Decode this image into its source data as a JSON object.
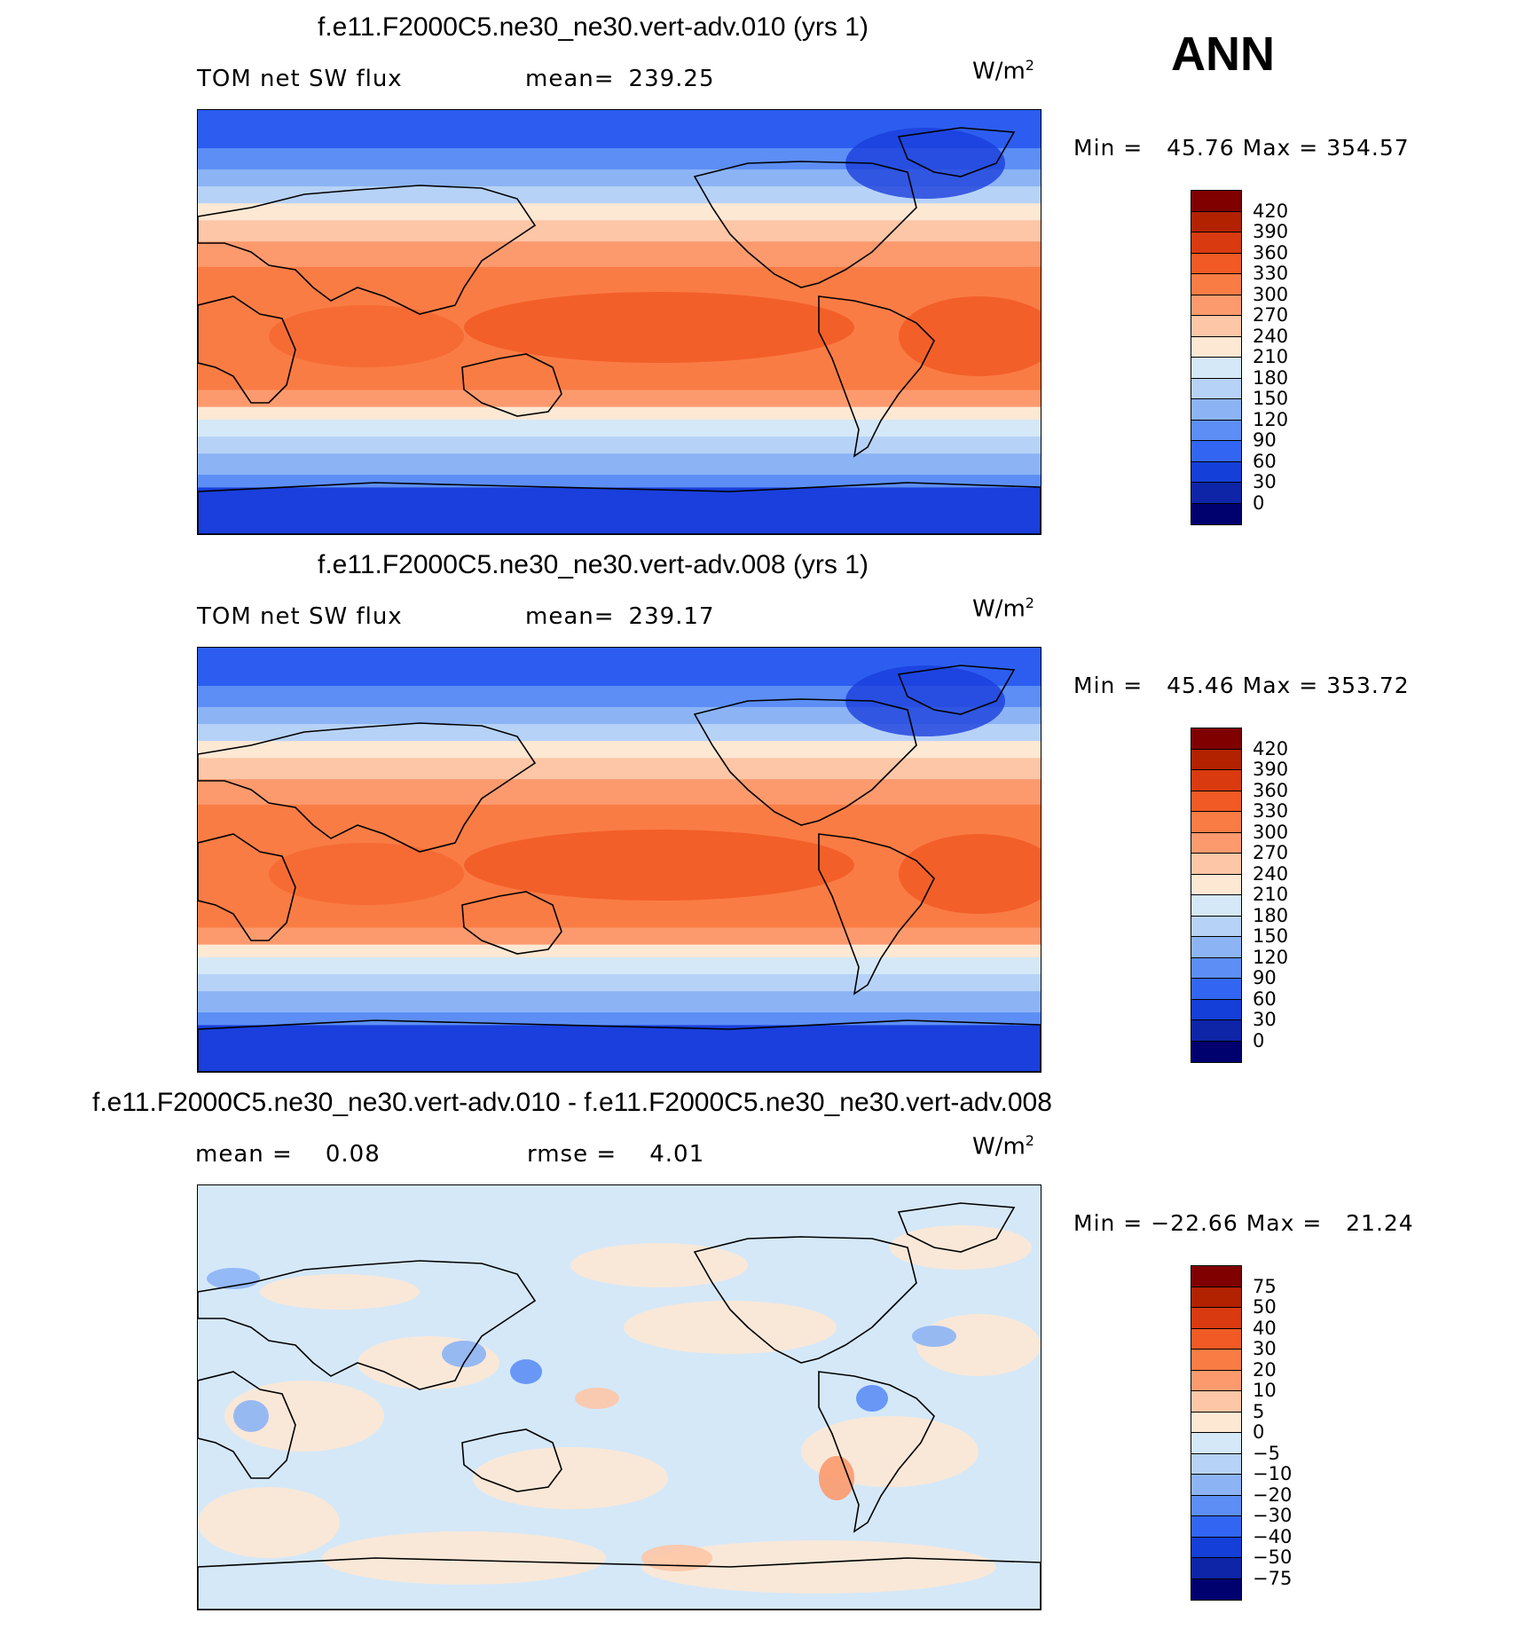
{
  "season": "ANN",
  "units": {
    "base": "W/m",
    "exp": "2"
  },
  "panels": [
    {
      "title": "f.e11.F2000C5.ne30_ne30.vert-adv.010 (yrs 1)",
      "stat1_label": "TOM net SW flux",
      "stat2_label": "mean=",
      "stat2_value": "239.25",
      "min_label": "Min =",
      "min_value": "45.76",
      "max_label": "Max =",
      "max_value": "354.57",
      "colorbar": {
        "levels": [
          "420",
          "390",
          "360",
          "330",
          "300",
          "270",
          "240",
          "210",
          "180",
          "150",
          "120",
          "90",
          "60",
          "30",
          "0"
        ],
        "colors": [
          "#800000",
          "#b22200",
          "#d93a10",
          "#f15a24",
          "#fa7c45",
          "#fc9a6e",
          "#fdc6a6",
          "#fde8d4",
          "#d5e8f8",
          "#b7d2f7",
          "#8cb4f5",
          "#5c8ef5",
          "#3266f2",
          "#143fd8",
          "#0e25a8",
          "#00006f"
        ]
      },
      "field": "abs"
    },
    {
      "title": "f.e11.F2000C5.ne30_ne30.vert-adv.008 (yrs 1)",
      "stat1_label": "TOM net SW flux",
      "stat2_label": "mean=",
      "stat2_value": "239.17",
      "min_label": "Min =",
      "min_value": "45.46",
      "max_label": "Max =",
      "max_value": "353.72",
      "colorbar": {
        "levels": [
          "420",
          "390",
          "360",
          "330",
          "300",
          "270",
          "240",
          "210",
          "180",
          "150",
          "120",
          "90",
          "60",
          "30",
          "0"
        ],
        "colors": [
          "#800000",
          "#b22200",
          "#d93a10",
          "#f15a24",
          "#fa7c45",
          "#fc9a6e",
          "#fdc6a6",
          "#fde8d4",
          "#d5e8f8",
          "#b7d2f7",
          "#8cb4f5",
          "#5c8ef5",
          "#3266f2",
          "#143fd8",
          "#0e25a8",
          "#00006f"
        ]
      },
      "field": "abs"
    },
    {
      "title": "f.e11.F2000C5.ne30_ne30.vert-adv.010 - f.e11.F2000C5.ne30_ne30.vert-adv.008",
      "stat1_label": "mean =",
      "stat1_value": "0.08",
      "stat2_label": "rmse =",
      "stat2_value": "4.01",
      "min_label": "Min =",
      "min_value": "−22.66",
      "max_label": "Max =",
      "max_value": "21.24",
      "colorbar": {
        "levels": [
          "75",
          "50",
          "40",
          "30",
          "20",
          "10",
          "5",
          "0",
          "−5",
          "−10",
          "−20",
          "−30",
          "−40",
          "−50",
          "−75"
        ],
        "colors": [
          "#800000",
          "#b22200",
          "#d93a10",
          "#f15a24",
          "#fa7c45",
          "#fc9a6e",
          "#fdc6a6",
          "#fde8d4",
          "#d5e8f8",
          "#b7d2f7",
          "#8cb4f5",
          "#5c8ef5",
          "#3266f2",
          "#143fd8",
          "#0e25a8",
          "#00006f"
        ]
      },
      "field": "diff"
    }
  ]
}
